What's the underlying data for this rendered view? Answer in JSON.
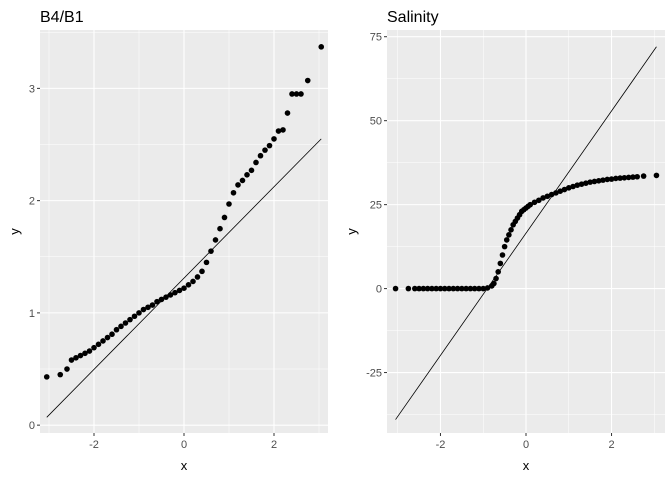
{
  "chart_data": [
    {
      "type": "scatter",
      "title": "B4/B1",
      "xlabel": "x",
      "ylabel": "y",
      "xlim": [
        -3.2,
        3.2
      ],
      "ylim": [
        -0.07,
        3.52
      ],
      "x_ticks": [
        -2,
        0,
        2
      ],
      "y_ticks": [
        0,
        1,
        2,
        3
      ],
      "x_tick_labels": [
        "-2",
        "0",
        "2"
      ],
      "y_tick_labels": [
        "0",
        "1",
        "2",
        "3"
      ],
      "grid": true,
      "reference_line": {
        "x": [
          -3.05,
          3.05
        ],
        "y": [
          0.07,
          2.55
        ]
      },
      "series": [
        {
          "x": [
            -3.05,
            -2.75,
            -2.6,
            -2.5,
            -2.4,
            -2.3,
            -2.2,
            -2.1,
            -2.0,
            -1.9,
            -1.8,
            -1.7,
            -1.6,
            -1.5,
            -1.4,
            -1.3,
            -1.2,
            -1.1,
            -1.0,
            -0.9,
            -0.8,
            -0.7,
            -0.6,
            -0.5,
            -0.4,
            -0.3,
            -0.2,
            -0.1,
            0.0,
            0.1,
            0.2,
            0.3,
            0.4,
            0.5,
            0.6,
            0.7,
            0.8,
            0.9,
            1.0,
            1.1,
            1.2,
            1.3,
            1.4,
            1.5,
            1.6,
            1.7,
            1.8,
            1.9,
            2.0,
            2.1,
            2.2,
            2.3,
            2.4,
            2.5,
            2.6,
            2.75,
            3.05
          ],
          "y": [
            0.43,
            0.45,
            0.5,
            0.58,
            0.6,
            0.62,
            0.64,
            0.66,
            0.69,
            0.72,
            0.75,
            0.78,
            0.81,
            0.85,
            0.88,
            0.91,
            0.94,
            0.97,
            1.0,
            1.03,
            1.05,
            1.07,
            1.1,
            1.12,
            1.14,
            1.16,
            1.18,
            1.2,
            1.22,
            1.25,
            1.28,
            1.32,
            1.37,
            1.45,
            1.55,
            1.65,
            1.75,
            1.85,
            1.97,
            2.07,
            2.14,
            2.18,
            2.23,
            2.27,
            2.34,
            2.4,
            2.45,
            2.49,
            2.55,
            2.62,
            2.63,
            2.78,
            2.95,
            2.95,
            2.95,
            3.07,
            3.37
          ]
        }
      ]
    },
    {
      "type": "scatter",
      "title": "Salinity",
      "xlabel": "x",
      "ylabel": "y",
      "xlim": [
        -3.25,
        3.25
      ],
      "ylim": [
        -43,
        77
      ],
      "x_ticks": [
        -2,
        0,
        2
      ],
      "y_ticks": [
        -25,
        0,
        25,
        50,
        75
      ],
      "x_tick_labels": [
        "-2",
        "0",
        "2"
      ],
      "y_tick_labels": [
        "-25",
        "0",
        "25",
        "50",
        "75"
      ],
      "grid": true,
      "reference_line": {
        "x": [
          -3.05,
          3.05
        ],
        "y": [
          -39,
          72
        ]
      },
      "series": [
        {
          "x": [
            -3.05,
            -2.75,
            -2.6,
            -2.5,
            -2.4,
            -2.3,
            -2.2,
            -2.1,
            -2.0,
            -1.9,
            -1.8,
            -1.7,
            -1.6,
            -1.5,
            -1.4,
            -1.3,
            -1.2,
            -1.1,
            -1.0,
            -0.9,
            -0.8,
            -0.75,
            -0.7,
            -0.65,
            -0.6,
            -0.55,
            -0.5,
            -0.45,
            -0.4,
            -0.35,
            -0.3,
            -0.25,
            -0.2,
            -0.15,
            -0.1,
            -0.05,
            0.0,
            0.05,
            0.1,
            0.2,
            0.3,
            0.4,
            0.5,
            0.6,
            0.7,
            0.8,
            0.9,
            1.0,
            1.1,
            1.2,
            1.3,
            1.4,
            1.5,
            1.6,
            1.7,
            1.8,
            1.9,
            2.0,
            2.1,
            2.2,
            2.3,
            2.4,
            2.5,
            2.6,
            2.75,
            3.05
          ],
          "y": [
            0,
            0,
            0,
            0,
            0,
            0,
            0,
            0,
            0,
            0,
            0,
            0,
            0,
            0,
            0,
            0,
            0,
            0,
            0,
            0.2,
            0.8,
            1.5,
            3,
            5,
            7.5,
            10,
            12.5,
            14.5,
            16,
            17.5,
            19,
            20,
            21,
            22,
            23,
            23.5,
            24,
            24.5,
            25,
            25.7,
            26.3,
            27,
            27.5,
            28,
            28.5,
            29,
            29.5,
            30,
            30.4,
            30.8,
            31.1,
            31.4,
            31.7,
            31.9,
            32.1,
            32.3,
            32.5,
            32.6,
            32.8,
            32.9,
            33.0,
            33.1,
            33.2,
            33.3,
            33.5,
            33.7
          ]
        }
      ]
    }
  ]
}
